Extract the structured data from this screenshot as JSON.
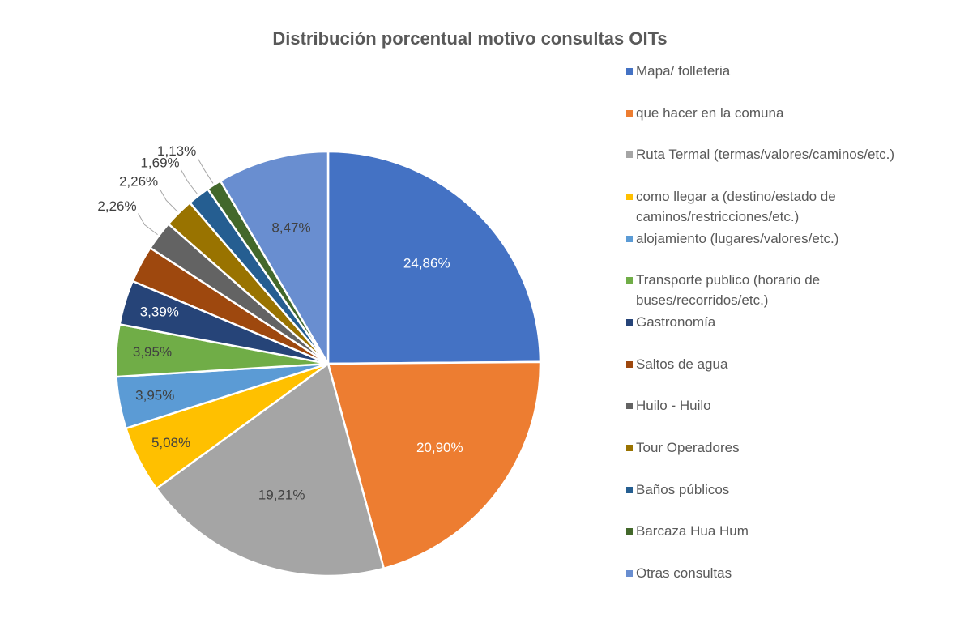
{
  "chart_data": {
    "type": "pie",
    "title": "Distribución porcentual motivo consultas OITs",
    "categories": [
      "Mapa/ folleteria",
      "que hacer en la comuna",
      "Ruta Termal (termas/valores/caminos/etc.)",
      "como llegar a  (destino/estado de caminos/restricciones/etc.)",
      "alojamiento (lugares/valores/etc.)",
      "Transporte publico (horario de buses/recorridos/etc.)",
      "Gastronomía",
      "Saltos de agua",
      "Huilo - Huilo",
      "Tour Operadores",
      "Baños públicos",
      "Barcaza Hua Hum",
      "Otras consultas"
    ],
    "values": [
      24.86,
      20.9,
      19.21,
      5.08,
      3.95,
      3.95,
      3.39,
      2.82,
      2.26,
      2.26,
      1.69,
      1.13,
      8.47
    ],
    "value_labels": [
      "24,86%",
      "20,90%",
      "19,21%",
      "5,08%",
      "3,95%",
      "3,95%",
      "3,39%",
      null,
      "2,26%",
      "2,26%",
      "1,69%",
      "1,13%",
      "8,47%"
    ],
    "colors": [
      "#4472c4",
      "#ed7d31",
      "#a5a5a5",
      "#ffc000",
      "#5b9bd5",
      "#70ad47",
      "#264478",
      "#9e480e",
      "#636363",
      "#997300",
      "#255e91",
      "#43682b",
      "#698ed0"
    ],
    "legend": "right"
  }
}
